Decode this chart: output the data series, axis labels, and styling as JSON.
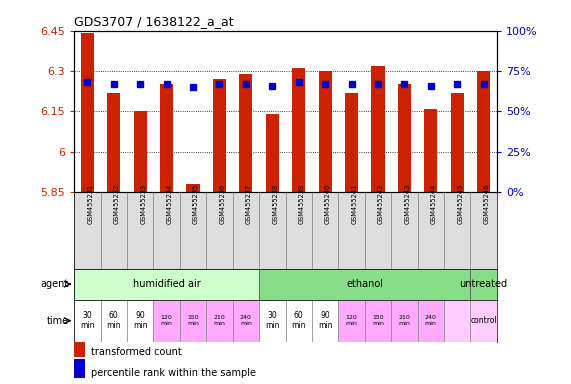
{
  "title": "GDS3707 / 1638122_a_at",
  "samples": [
    "GSM455231",
    "GSM455232",
    "GSM455233",
    "GSM455234",
    "GSM455235",
    "GSM455236",
    "GSM455237",
    "GSM455238",
    "GSM455239",
    "GSM455240",
    "GSM455241",
    "GSM455242",
    "GSM455243",
    "GSM455244",
    "GSM455245",
    "GSM455246"
  ],
  "transformed_counts": [
    6.44,
    6.22,
    6.15,
    6.25,
    5.88,
    6.27,
    6.29,
    6.14,
    6.31,
    6.3,
    6.22,
    6.32,
    6.25,
    6.16,
    6.22,
    6.3
  ],
  "percentile_ranks": [
    68,
    67,
    67,
    67,
    65,
    67,
    67,
    66,
    68,
    67,
    67,
    67,
    67,
    66,
    67,
    67
  ],
  "ymin": 5.85,
  "ymax": 6.45,
  "yticks": [
    5.85,
    6.0,
    6.15,
    6.3,
    6.45
  ],
  "ytick_labels": [
    "5.85",
    "6",
    "6.15",
    "6.3",
    "6.45"
  ],
  "ytick_labels_right": [
    "0%",
    "25%",
    "50%",
    "75%",
    "100%"
  ],
  "bar_color": "#cc2200",
  "dot_color": "#0000cc",
  "background_color": "#ffffff",
  "tick_color_left": "#cc2200",
  "tick_color_right": "#0000bb",
  "legend_bar_color": "#cc2200",
  "legend_dot_color": "#0000cc",
  "group_configs": [
    {
      "start": 0,
      "end": 6,
      "label": "humidified air",
      "color": "#ccffcc"
    },
    {
      "start": 7,
      "end": 14,
      "label": "ethanol",
      "color": "#88dd88"
    },
    {
      "start": 15,
      "end": 15,
      "label": "untreated",
      "color": "#88dd88"
    }
  ],
  "time_colors": [
    "#ffffff",
    "#ffffff",
    "#ffffff",
    "#ffaaff",
    "#ffaaff",
    "#ffaaff",
    "#ffaaff",
    "#ffffff",
    "#ffffff",
    "#ffffff",
    "#ffaaff",
    "#ffaaff",
    "#ffaaff",
    "#ffaaff",
    "#ffccff",
    "#ffccff"
  ],
  "time_labels": [
    "30\nmin",
    "60\nmin",
    "90\nmin",
    "120\nmin",
    "150\nmin",
    "210\nmin",
    "240\nmin",
    "30\nmin",
    "60\nmin",
    "90\nmin",
    "120\nmin",
    "150\nmin",
    "210\nmin",
    "240\nmin",
    "",
    "control"
  ],
  "time_small": [
    3,
    4,
    5,
    6,
    10,
    11,
    12,
    13
  ]
}
